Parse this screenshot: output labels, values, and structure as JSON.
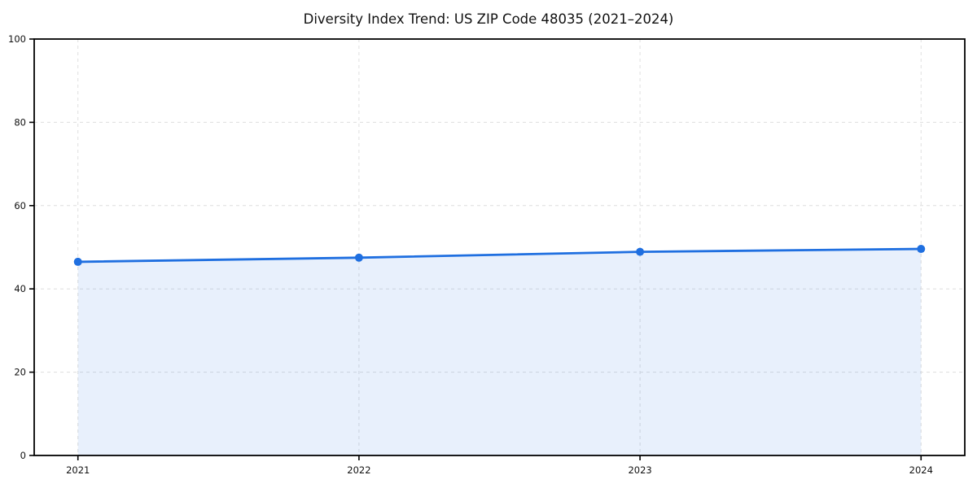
{
  "chart": {
    "title": "Diversity Index Trend: US ZIP Code 48035 (2021–2024)"
  },
  "chart_data": {
    "type": "line",
    "title": "Diversity Index Trend: US ZIP Code 48035 (2021–2024)",
    "x": [
      2021,
      2022,
      2023,
      2024
    ],
    "xticklabels": [
      "2021",
      "2022",
      "2023",
      "2024"
    ],
    "series": [
      {
        "name": "Diversity Index",
        "values": [
          46.5,
          47.5,
          48.9,
          49.6
        ]
      }
    ],
    "xlabel": "",
    "ylabel": "",
    "ylim": [
      0,
      100
    ],
    "yticks": [
      0,
      20,
      40,
      60,
      80,
      100
    ],
    "grid": true,
    "grid_style": "dashed",
    "legend_position": "none",
    "area_fill": true,
    "marker": "circle",
    "colors": {
      "line": "#1f6fe0",
      "marker": "#1f6fe0",
      "fill": "rgba(31,111,224,0.10)",
      "grid": "#dedede",
      "spine": "#000000",
      "background": "#ffffff"
    }
  }
}
